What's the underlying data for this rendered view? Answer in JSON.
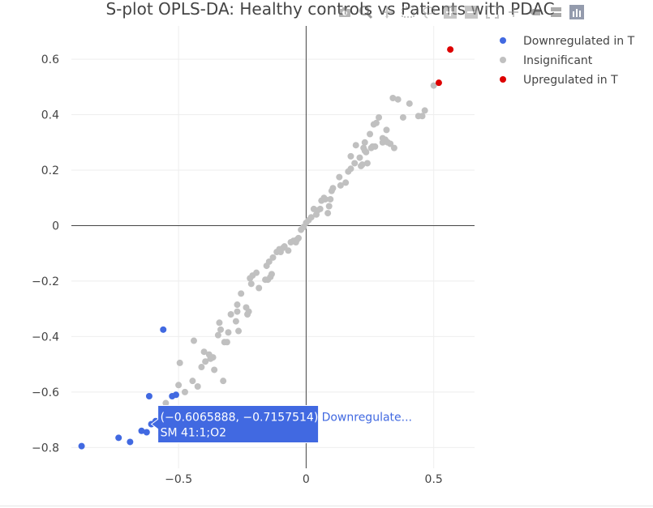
{
  "chart_data": {
    "type": "scatter",
    "title": "S-plot OPLS-DA: Healthy controls vs Patients with PDAC",
    "xlim": [
      -0.92,
      0.66
    ],
    "ylim": [
      -0.875,
      0.72
    ],
    "x_ticks": [
      -0.5,
      0,
      0.5
    ],
    "x_tick_labels": [
      "−0.5",
      "0",
      "0.5"
    ],
    "y_ticks": [
      -0.8,
      -0.6,
      -0.4,
      -0.2,
      0,
      0.2,
      0.4,
      0.6
    ],
    "y_tick_labels": [
      "−0.8",
      "−0.6",
      "−0.4",
      "−0.2",
      "0",
      "0.2",
      "0.4",
      "0.6"
    ],
    "grid": true,
    "zero_lines": true,
    "legend_position": "top-right",
    "series": [
      {
        "name": "Downregulated in T",
        "color": "#4169e1",
        "points": [
          [
            -0.88,
            -0.795
          ],
          [
            -0.735,
            -0.765
          ],
          [
            -0.69,
            -0.78
          ],
          [
            -0.645,
            -0.74
          ],
          [
            -0.625,
            -0.745
          ],
          [
            -0.615,
            -0.615
          ],
          [
            -0.6066,
            -0.7158
          ],
          [
            -0.59,
            -0.705
          ],
          [
            -0.565,
            -0.68
          ],
          [
            -0.56,
            -0.375
          ],
          [
            -0.525,
            -0.615
          ],
          [
            -0.51,
            -0.61
          ]
        ]
      },
      {
        "name": "Insignificant",
        "color": "#c0c0c0",
        "points": [
          [
            -0.55,
            -0.64
          ],
          [
            -0.5,
            -0.575
          ],
          [
            -0.495,
            -0.495
          ],
          [
            -0.475,
            -0.6
          ],
          [
            -0.445,
            -0.56
          ],
          [
            -0.44,
            -0.415
          ],
          [
            -0.425,
            -0.58
          ],
          [
            -0.41,
            -0.51
          ],
          [
            -0.4,
            -0.455
          ],
          [
            -0.395,
            -0.49
          ],
          [
            -0.38,
            -0.465
          ],
          [
            -0.375,
            -0.48
          ],
          [
            -0.365,
            -0.475
          ],
          [
            -0.36,
            -0.52
          ],
          [
            -0.345,
            -0.395
          ],
          [
            -0.34,
            -0.35
          ],
          [
            -0.335,
            -0.375
          ],
          [
            -0.325,
            -0.56
          ],
          [
            -0.32,
            -0.42
          ],
          [
            -0.31,
            -0.42
          ],
          [
            -0.305,
            -0.385
          ],
          [
            -0.295,
            -0.32
          ],
          [
            -0.275,
            -0.345
          ],
          [
            -0.27,
            -0.31
          ],
          [
            -0.27,
            -0.285
          ],
          [
            -0.265,
            -0.38
          ],
          [
            -0.255,
            -0.245
          ],
          [
            -0.235,
            -0.295
          ],
          [
            -0.23,
            -0.32
          ],
          [
            -0.225,
            -0.31
          ],
          [
            -0.22,
            -0.19
          ],
          [
            -0.215,
            -0.21
          ],
          [
            -0.21,
            -0.18
          ],
          [
            -0.195,
            -0.17
          ],
          [
            -0.185,
            -0.225
          ],
          [
            -0.16,
            -0.195
          ],
          [
            -0.155,
            -0.145
          ],
          [
            -0.15,
            -0.195
          ],
          [
            -0.145,
            -0.13
          ],
          [
            -0.14,
            -0.185
          ],
          [
            -0.135,
            -0.175
          ],
          [
            -0.13,
            -0.115
          ],
          [
            -0.115,
            -0.095
          ],
          [
            -0.105,
            -0.085
          ],
          [
            -0.1,
            -0.095
          ],
          [
            -0.09,
            -0.08
          ],
          [
            -0.085,
            -0.075
          ],
          [
            -0.07,
            -0.09
          ],
          [
            -0.06,
            -0.06
          ],
          [
            -0.05,
            -0.055
          ],
          [
            -0.045,
            -0.055
          ],
          [
            -0.04,
            -0.06
          ],
          [
            -0.035,
            -0.05
          ],
          [
            -0.03,
            -0.045
          ],
          [
            -0.02,
            -0.015
          ],
          [
            -0.01,
            -0.005
          ],
          [
            0.0,
            0.01
          ],
          [
            0.01,
            0.02
          ],
          [
            0.02,
            0.03
          ],
          [
            0.03,
            0.06
          ],
          [
            0.04,
            0.04
          ],
          [
            0.045,
            0.055
          ],
          [
            0.055,
            0.06
          ],
          [
            0.06,
            0.09
          ],
          [
            0.07,
            0.1
          ],
          [
            0.075,
            0.095
          ],
          [
            0.085,
            0.045
          ],
          [
            0.09,
            0.07
          ],
          [
            0.095,
            0.095
          ],
          [
            0.1,
            0.125
          ],
          [
            0.105,
            0.135
          ],
          [
            0.13,
            0.175
          ],
          [
            0.135,
            0.145
          ],
          [
            0.155,
            0.155
          ],
          [
            0.165,
            0.195
          ],
          [
            0.175,
            0.205
          ],
          [
            0.175,
            0.25
          ],
          [
            0.19,
            0.225
          ],
          [
            0.195,
            0.29
          ],
          [
            0.21,
            0.245
          ],
          [
            0.215,
            0.215
          ],
          [
            0.22,
            0.22
          ],
          [
            0.225,
            0.28
          ],
          [
            0.23,
            0.3
          ],
          [
            0.23,
            0.27
          ],
          [
            0.235,
            0.265
          ],
          [
            0.24,
            0.225
          ],
          [
            0.25,
            0.33
          ],
          [
            0.255,
            0.28
          ],
          [
            0.26,
            0.285
          ],
          [
            0.27,
            0.285
          ],
          [
            0.265,
            0.365
          ],
          [
            0.275,
            0.37
          ],
          [
            0.285,
            0.39
          ],
          [
            0.3,
            0.3
          ],
          [
            0.3,
            0.315
          ],
          [
            0.31,
            0.31
          ],
          [
            0.315,
            0.345
          ],
          [
            0.32,
            0.3
          ],
          [
            0.33,
            0.295
          ],
          [
            0.34,
            0.46
          ],
          [
            0.345,
            0.28
          ],
          [
            0.36,
            0.455
          ],
          [
            0.38,
            0.39
          ],
          [
            0.405,
            0.44
          ],
          [
            0.44,
            0.395
          ],
          [
            0.455,
            0.395
          ],
          [
            0.465,
            0.415
          ],
          [
            0.5,
            0.505
          ]
        ]
      },
      {
        "name": "Upregulated in T",
        "color": "#dd0000",
        "points": [
          [
            0.52,
            0.515
          ],
          [
            0.565,
            0.635
          ]
        ]
      }
    ],
    "hover": {
      "x": -0.6065888,
      "y": -0.7157514,
      "coords_text": "(−0.6065888, −0.7157514)",
      "label_text": "SM 41:1;O2",
      "series_text": "Downregulate..."
    }
  },
  "icons": [
    "camera-icon",
    "zoom-icon",
    "pan-icon",
    "box-select-icon",
    "lasso-icon",
    "zoom-in-icon",
    "zoom-out-icon",
    "autoscale-icon",
    "reset-axes-icon",
    "spike-lines-icon",
    "compare-hover-icon",
    "plotly-logo-icon"
  ]
}
